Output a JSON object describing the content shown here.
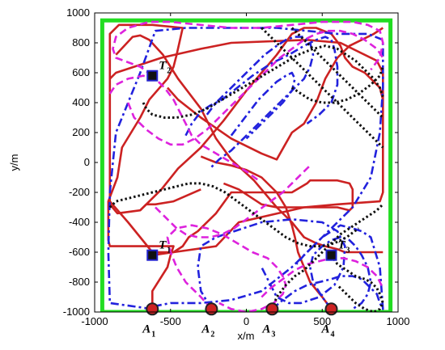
{
  "chart_data": {
    "type": "line",
    "title": "",
    "xlabel": "x/m",
    "ylabel": "y/m",
    "xlim": [
      -1000,
      1000
    ],
    "ylim": [
      -1000,
      1000
    ],
    "xticks": [
      -1000,
      -500,
      0,
      500,
      1000
    ],
    "yticks": [
      -1000,
      -800,
      -600,
      -400,
      -200,
      0,
      200,
      400,
      600,
      800,
      1000
    ],
    "grid": false,
    "colors": {
      "boundary": "#22dd22",
      "red_solid": "#cc2222",
      "blue_dashdot": "#2222dd",
      "magenta_dashed": "#dd22dd",
      "black_dotted": "#111111",
      "target_fill": "#111111",
      "target_edge": "#2222cc",
      "agent_fill": "#cc2222"
    },
    "boundary": {
      "x": [
        -950,
        950,
        950,
        -950,
        -950
      ],
      "y": [
        -1000,
        -1000,
        950,
        950,
        -1000
      ]
    },
    "targets": [
      {
        "label": "T",
        "sub": "1",
        "x": -620,
        "y": -620
      },
      {
        "label": "T",
        "sub": "2",
        "x": -620,
        "y": 580
      },
      {
        "label": "T",
        "sub": "3",
        "x": 560,
        "y": -620
      }
    ],
    "agents": [
      {
        "label": "A",
        "sub": "1",
        "x": -620,
        "y": -980
      },
      {
        "label": "A",
        "sub": "2",
        "x": -230,
        "y": -980
      },
      {
        "label": "A",
        "sub": "3",
        "x": 170,
        "y": -980
      },
      {
        "label": "A",
        "sub": "4",
        "x": 560,
        "y": -980
      }
    ],
    "series": [
      {
        "style": "red-solid",
        "x": [
          -620,
          -620,
          -520,
          -500,
          -480,
          -900,
          -910,
          -910,
          -850,
          -820,
          -700,
          -640,
          -520,
          -480,
          -460,
          -420,
          -620,
          -840,
          -900,
          -900,
          -850,
          -700,
          -680,
          -660,
          -600,
          -480,
          -300
        ],
        "y": [
          -980,
          -860,
          -700,
          -620,
          -560,
          -560,
          -520,
          -260,
          -100,
          100,
          300,
          420,
          560,
          640,
          720,
          900,
          920,
          920,
          860,
          -280,
          -340,
          -320,
          -300,
          -280,
          -280,
          -260,
          -180
        ]
      },
      {
        "style": "red-solid",
        "x": [
          -620,
          -480,
          -420,
          -380,
          -320,
          -200,
          -100,
          300,
          400,
          420,
          600,
          680,
          700,
          700,
          680,
          600,
          200,
          100,
          -50,
          -150
        ],
        "y": [
          -620,
          -600,
          -560,
          -500,
          -460,
          -340,
          -200,
          -200,
          -140,
          -120,
          -120,
          -140,
          -180,
          -300,
          -320,
          -300,
          -300,
          -280,
          -180,
          -140
        ]
      },
      {
        "style": "red-solid",
        "x": [
          -900,
          -780,
          -620,
          -480,
          -200,
          -50,
          380,
          600,
          880,
          900,
          900,
          860,
          620,
          400,
          -100,
          -300,
          -560,
          -860,
          -900
        ],
        "y": [
          -260,
          -400,
          -600,
          -600,
          -560,
          -400,
          -300,
          -280,
          -260,
          -200,
          600,
          680,
          800,
          820,
          800,
          760,
          700,
          600,
          560
        ]
      },
      {
        "style": "red-solid",
        "x": [
          -860,
          -750,
          -700,
          -640,
          -550,
          -450,
          -300,
          -200,
          -100,
          50,
          200,
          300,
          380,
          460,
          520,
          600,
          650,
          900
        ],
        "y": [
          720,
          840,
          850,
          820,
          720,
          560,
          360,
          160,
          20,
          -120,
          -300,
          -400,
          -500,
          -540,
          -560,
          -580,
          -600,
          -600
        ]
      },
      {
        "style": "red-solid",
        "x": [
          -700,
          -560,
          -450,
          -300,
          -150,
          0,
          200,
          300,
          380,
          460,
          560,
          620,
          650,
          700,
          780,
          880,
          900
        ],
        "y": [
          -320,
          -180,
          -40,
          100,
          280,
          480,
          720,
          860,
          900,
          900,
          860,
          780,
          700,
          640,
          600,
          500,
          420
        ]
      },
      {
        "style": "red-solid",
        "x": [
          -520,
          -450,
          -300,
          -100,
          100,
          200,
          300,
          380,
          460,
          520,
          600,
          680,
          760,
          840,
          900
        ],
        "y": [
          500,
          420,
          300,
          160,
          60,
          20,
          200,
          260,
          400,
          560,
          700,
          780,
          820,
          860,
          900
        ]
      },
      {
        "style": "red-solid",
        "x": [
          560,
          500,
          420,
          380,
          340,
          320,
          300,
          280,
          260,
          200,
          100,
          0,
          -100,
          -200,
          -300
        ],
        "y": [
          -980,
          -900,
          -800,
          -700,
          -600,
          -500,
          -420,
          -360,
          -300,
          -200,
          -100,
          -50,
          -20,
          0,
          40
        ]
      },
      {
        "style": "blue-dashdot",
        "x": [
          -620,
          -900,
          -910,
          -900,
          -860,
          -700,
          -600,
          -400,
          -100,
          200,
          400,
          600,
          800,
          900,
          900,
          880,
          820,
          700,
          500,
          300,
          100,
          -100,
          -300,
          -400,
          -500,
          -600,
          -620
        ],
        "y": [
          -980,
          -940,
          -600,
          -200,
          200,
          600,
          880,
          900,
          900,
          900,
          880,
          860,
          860,
          820,
          500,
          200,
          -100,
          -300,
          -500,
          -700,
          -860,
          -920,
          -940,
          -940,
          -940,
          -960,
          -980
        ]
      },
      {
        "style": "blue-dashdot",
        "x": [
          -230,
          -300,
          -320,
          -300,
          -200,
          -80,
          100,
          300,
          500,
          600,
          650,
          640,
          580,
          480,
          360,
          280,
          200,
          160,
          100
        ],
        "y": [
          -980,
          -860,
          -700,
          -560,
          -500,
          -460,
          -400,
          -380,
          -400,
          -460,
          -560,
          -700,
          -820,
          -900,
          -940,
          -940,
          -900,
          -820,
          -700
        ]
      },
      {
        "style": "blue-dashdot",
        "x": [
          170,
          240,
          320,
          400,
          480,
          560,
          620,
          700,
          760,
          800,
          860,
          880,
          900,
          880,
          820,
          760,
          700,
          620,
          560,
          500,
          440,
          380,
          330
        ],
        "y": [
          -980,
          -920,
          -860,
          -820,
          -800,
          -780,
          -760,
          -760,
          -780,
          -820,
          -880,
          -940,
          -980,
          -700,
          -500,
          -460,
          -440,
          -420,
          -460,
          -500,
          -560,
          -620,
          -680
        ]
      },
      {
        "style": "blue-dashdot",
        "x": [
          560,
          500,
          440,
          420,
          440,
          500,
          560,
          620,
          680,
          720,
          760,
          800,
          820,
          800,
          760,
          700
        ],
        "y": [
          -980,
          -900,
          -800,
          -700,
          -620,
          -560,
          -520,
          -500,
          -520,
          -560,
          -620,
          -700,
          -800,
          -880,
          -940,
          -980
        ]
      },
      {
        "style": "blue-dashdot",
        "x": [
          -400,
          -360,
          -300,
          -240,
          -160,
          -60,
          40,
          160,
          280,
          380,
          460,
          520,
          560,
          580,
          600,
          600,
          560,
          480,
          400
        ],
        "y": [
          180,
          260,
          340,
          380,
          420,
          500,
          580,
          660,
          720,
          780,
          820,
          840,
          820,
          760,
          640,
          520,
          400,
          320,
          260
        ]
      },
      {
        "style": "blue-dashdot",
        "x": [
          -260,
          -200,
          -120,
          -40,
          40,
          120,
          200,
          260,
          320,
          380,
          420,
          440,
          420,
          380,
          300,
          220,
          140,
          60,
          -20,
          -100,
          -180,
          -240
        ],
        "y": [
          320,
          400,
          480,
          560,
          640,
          720,
          780,
          820,
          840,
          840,
          800,
          720,
          640,
          560,
          480,
          400,
          320,
          240,
          160,
          80,
          20,
          -40
        ]
      },
      {
        "style": "blue-dashdot",
        "x": [
          -100,
          -40,
          20,
          80,
          140,
          200,
          260,
          300,
          320,
          300,
          240,
          160,
          80,
          0
        ],
        "y": [
          180,
          260,
          340,
          420,
          480,
          540,
          580,
          600,
          560,
          480,
          400,
          320,
          240,
          160
        ]
      },
      {
        "style": "magenta-dashed",
        "x": [
          -620,
          -700,
          -860,
          -880,
          -860,
          -780,
          -640,
          -500,
          -300,
          -100,
          100,
          300,
          500,
          700,
          800,
          880,
          900,
          880,
          820
        ],
        "y": [
          580,
          640,
          700,
          760,
          840,
          900,
          940,
          940,
          920,
          900,
          900,
          920,
          940,
          940,
          920,
          880,
          800,
          700,
          620
        ]
      },
      {
        "style": "magenta-dashed",
        "x": [
          -230,
          -300,
          -400,
          -460,
          -500,
          -520,
          -460,
          -360,
          -260,
          -160,
          -60,
          40,
          140,
          200,
          240,
          260,
          240,
          180,
          100,
          0,
          -100,
          -180
        ],
        "y": [
          -980,
          -900,
          -800,
          -700,
          -600,
          -500,
          -440,
          -420,
          -440,
          -480,
          -540,
          -600,
          -640,
          -700,
          -760,
          -820,
          -880,
          -940,
          -980,
          -1000,
          -980,
          -940
        ]
      },
      {
        "style": "magenta-dashed",
        "x": [
          -900,
          -860,
          -780,
          -680,
          -600,
          -540,
          -480,
          -440,
          -400,
          -360,
          -300,
          -200,
          -100,
          0,
          80
        ],
        "y": [
          460,
          520,
          560,
          580,
          560,
          500,
          420,
          340,
          260,
          180,
          120,
          60,
          0,
          -60,
          -120
        ]
      },
      {
        "style": "magenta-dashed",
        "x": [
          -780,
          -740,
          -660,
          -580,
          -500,
          -420,
          -340,
          -260,
          -180,
          -100,
          -20,
          60,
          140,
          220,
          300,
          380,
          460,
          540,
          620,
          700,
          780,
          860,
          900
        ],
        "y": [
          400,
          300,
          220,
          160,
          120,
          120,
          160,
          220,
          300,
          380,
          460,
          540,
          620,
          700,
          760,
          820,
          860,
          880,
          880,
          860,
          820,
          760,
          700
        ]
      },
      {
        "style": "magenta-dashed",
        "x": [
          -600,
          -520,
          -460,
          -400,
          -320,
          -240,
          -160,
          -80,
          0,
          80,
          160,
          240,
          300,
          360,
          420
        ],
        "y": [
          -300,
          -380,
          -440,
          -480,
          -500,
          -500,
          -480,
          -440,
          -380,
          -320,
          -260,
          -200,
          -140,
          -80,
          -20
        ]
      },
      {
        "style": "magenta-dashed",
        "x": [
          100,
          160,
          240,
          320,
          400,
          480,
          560,
          640,
          720,
          800,
          860,
          900
        ],
        "y": [
          -900,
          -840,
          -780,
          -720,
          -680,
          -660,
          -640,
          -640,
          -660,
          -700,
          -760,
          -840
        ]
      },
      {
        "style": "black-dotted",
        "x": [
          170,
          200,
          260,
          320,
          380,
          420,
          460,
          500,
          540,
          580,
          620,
          680,
          740,
          800,
          860,
          900
        ],
        "y": [
          -980,
          -900,
          -820,
          -760,
          -720,
          -680,
          -640,
          -600,
          -560,
          -520,
          -480,
          -440,
          -400,
          -360,
          -320,
          -280
        ]
      },
      {
        "style": "black-dotted",
        "x": [
          -680,
          -660,
          -620,
          -540,
          -460,
          -360,
          -260,
          -160,
          -60,
          40,
          140,
          240,
          340,
          440,
          520,
          600,
          660,
          720,
          780,
          840,
          880,
          900
        ],
        "y": [
          400,
          360,
          320,
          300,
          300,
          320,
          360,
          420,
          480,
          540,
          600,
          660,
          720,
          760,
          780,
          760,
          720,
          680,
          620,
          560,
          500,
          440
        ]
      },
      {
        "style": "black-dotted",
        "x": [
          -900,
          -860,
          -780,
          -700,
          -620,
          -540,
          -460,
          -380,
          -300,
          -220,
          -140,
          -60,
          20,
          100,
          180,
          260,
          340,
          420,
          500,
          580,
          660,
          740
        ],
        "y": [
          -300,
          -260,
          -240,
          -220,
          -200,
          -180,
          -160,
          -140,
          -140,
          -160,
          -200,
          -260,
          -320,
          -380,
          -440,
          -500,
          -540,
          -560,
          -560,
          -540,
          -500,
          -440
        ]
      },
      {
        "style": "black-dotted",
        "x": [
          100,
          140,
          180,
          220,
          260,
          300,
          340,
          380,
          420,
          460,
          500,
          540,
          580,
          620,
          660,
          700,
          740,
          780,
          820,
          860,
          900
        ],
        "y": [
          900,
          860,
          820,
          780,
          740,
          700,
          660,
          620,
          580,
          540,
          500,
          460,
          420,
          380,
          340,
          300,
          260,
          220,
          180,
          140,
          100
        ]
      },
      {
        "style": "black-dotted",
        "x": [
          300,
          340,
          400,
          460,
          520,
          580,
          640,
          700,
          760,
          800,
          840,
          880,
          900
        ],
        "y": [
          900,
          860,
          800,
          740,
          680,
          620,
          560,
          500,
          440,
          400,
          360,
          320,
          300
        ]
      },
      {
        "style": "black-dotted",
        "x": [
          560,
          600,
          660,
          720,
          780,
          820,
          860,
          880,
          900,
          880,
          840,
          780,
          720,
          660,
          600
        ],
        "y": [
          -620,
          -680,
          -720,
          -760,
          -780,
          -800,
          -840,
          -880,
          -940,
          -980,
          -1000,
          -980,
          -940,
          -880,
          -820
        ]
      },
      {
        "style": "black-dotted",
        "x": [
          300,
          360,
          420,
          500,
          580,
          660,
          740,
          820,
          880,
          900
        ],
        "y": [
          500,
          460,
          420,
          400,
          400,
          420,
          460,
          520,
          580,
          640
        ]
      }
    ]
  }
}
